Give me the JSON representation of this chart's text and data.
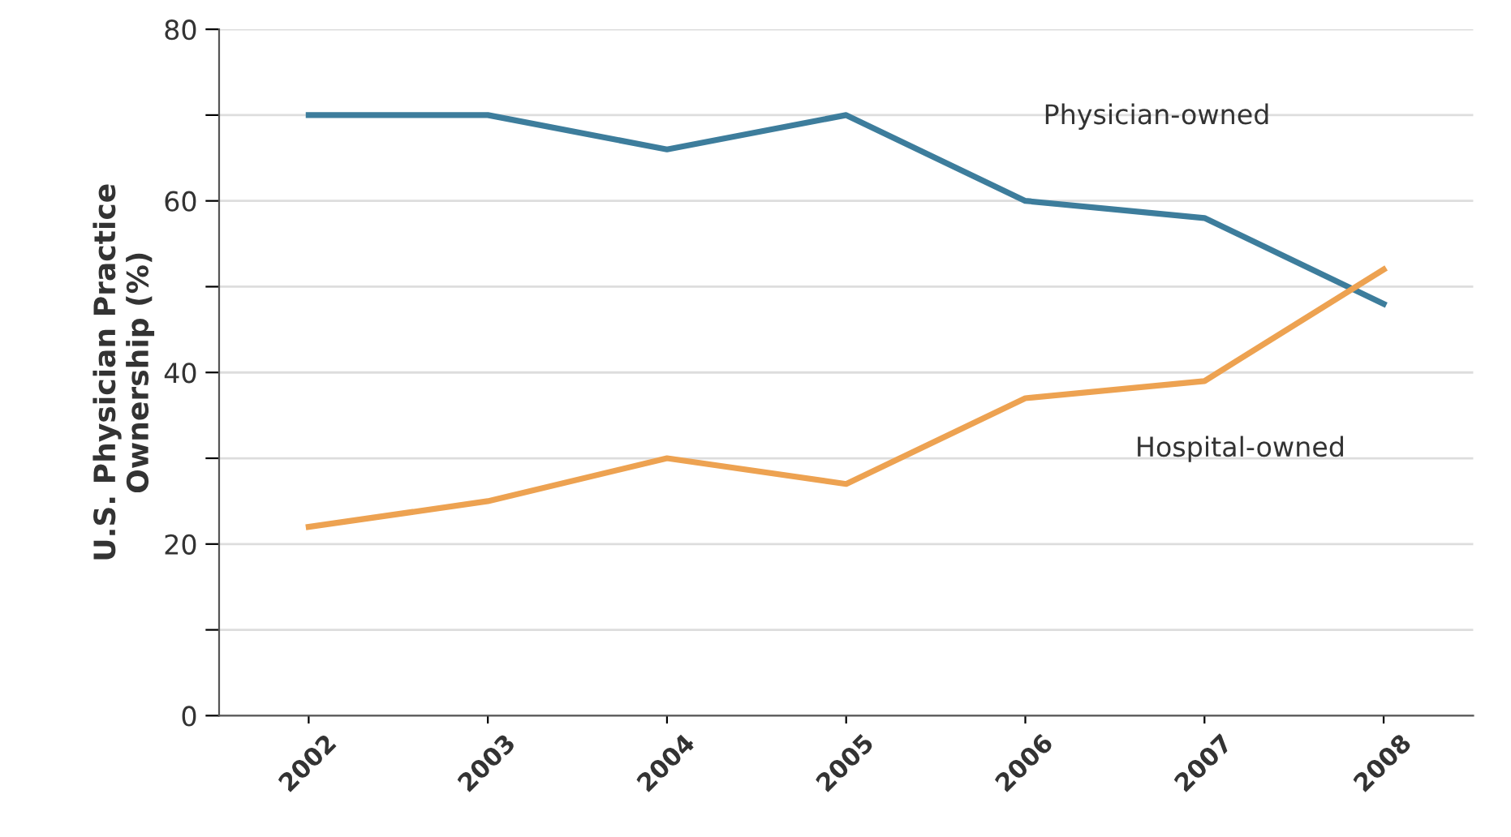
{
  "chart_data": {
    "type": "line",
    "ylabel": "U.S. Physician Practice\nOwnership (%)",
    "categories": [
      "2002",
      "2003",
      "2004",
      "2005",
      "2006",
      "2007",
      "2008"
    ],
    "series": [
      {
        "name": "Physician-owned",
        "color": "#3d7d9c",
        "values": [
          70,
          70,
          66,
          70,
          60,
          58,
          48
        ]
      },
      {
        "name": "Hospital-owned",
        "color": "#eda251",
        "values": [
          22,
          25,
          30,
          27,
          37,
          39,
          52
        ]
      }
    ],
    "ylim": [
      0,
      80
    ],
    "yticks": [
      0,
      {
        "value": 10,
        "label": null
      },
      20,
      {
        "value": 30,
        "label": null
      },
      40,
      {
        "value": 50,
        "label": null
      },
      60,
      {
        "value": 70,
        "label": null
      },
      80
    ],
    "grid": "y",
    "marker": "none",
    "line_style": "solid"
  }
}
